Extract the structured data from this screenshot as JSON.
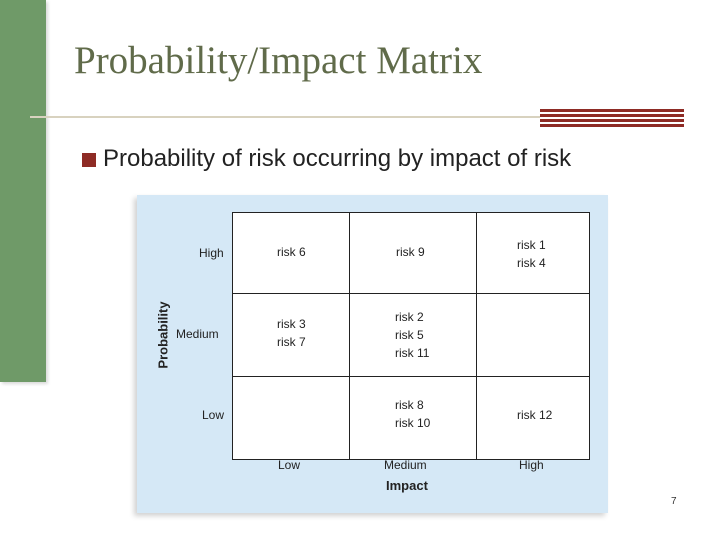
{
  "slide": {
    "title": "Probability/Impact Matrix",
    "bullet": "Probability of risk occurring by impact of risk",
    "page_number": "7"
  },
  "matrix": {
    "y_axis_title": "Probability",
    "x_axis_title": "Impact",
    "row_labels": [
      "High",
      "Medium",
      "Low"
    ],
    "col_labels": [
      "Low",
      "Medium",
      "High"
    ],
    "cells": [
      [
        "risk 6",
        "risk 9",
        "risk 1\nrisk 4"
      ],
      [
        "risk 3\nrisk 7",
        "risk 2\nrisk 5\nrisk 11",
        ""
      ],
      [
        "",
        "risk 8\nrisk 10",
        "risk 12"
      ]
    ]
  },
  "colors": {
    "sidebar": "#6f9a68",
    "title": "#606b4a",
    "accent": "#8e2b25",
    "figure_background": "#d5e8f6"
  }
}
